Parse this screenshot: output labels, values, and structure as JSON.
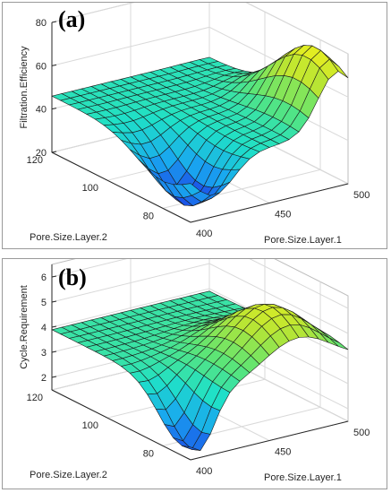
{
  "chart_data": [
    {
      "type": "surface",
      "panel_label": "(a)",
      "xlabel": "Pore.Size.Layer.1",
      "ylabel": "Pore.Size.Layer.2",
      "zlabel": "Filtration.Efficiency",
      "xlim": [
        400,
        500
      ],
      "ylim": [
        70,
        120
      ],
      "zlim": [
        20,
        80
      ],
      "x_ticks": [
        "400",
        "450",
        "500"
      ],
      "y_ticks": [
        "120",
        "100",
        "80"
      ],
      "z_ticks": [
        "20",
        "40",
        "60",
        "80"
      ],
      "grid": true,
      "colormap": [
        "#1c3ce6",
        "#19a7f0",
        "#1fe0c8",
        "#5fe573",
        "#b8e534",
        "#f0f01c"
      ],
      "surface_model": {
        "base": 46,
        "dip": {
          "depth": 27,
          "center_x": 415,
          "center_y": 80,
          "width_x": 18,
          "width_y": 14
        },
        "ridge": {
          "height": 33,
          "center_x": 493,
          "center_y": 78,
          "width_x": 17,
          "width_y": 18
        }
      }
    },
    {
      "type": "surface",
      "panel_label": "(b)",
      "xlabel": "Pore.Size.Layer.1",
      "ylabel": "Pore.Size.Layer.2",
      "zlabel": "Cycle.Requirement",
      "xlim": [
        400,
        500
      ],
      "ylim": [
        70,
        120
      ],
      "zlim": [
        1.5,
        6.5
      ],
      "x_ticks": [
        "400",
        "450",
        "500"
      ],
      "y_ticks": [
        "120",
        "100",
        "80"
      ],
      "z_ticks": [
        "2",
        "3",
        "4",
        "5",
        "6"
      ],
      "grid": true,
      "colormap": [
        "#1c3ce6",
        "#19a7f0",
        "#1fe0c8",
        "#5fe573",
        "#b8e534",
        "#f0f01c"
      ],
      "surface_model": {
        "base": 3.9,
        "dip": {
          "depth": 2.3,
          "center_x": 405,
          "center_y": 73,
          "width_x": 14,
          "width_y": 12
        },
        "ridge": {
          "height": 2.1,
          "center_x": 468,
          "center_y": 80,
          "width_x": 30,
          "width_y": 16
        }
      }
    }
  ]
}
